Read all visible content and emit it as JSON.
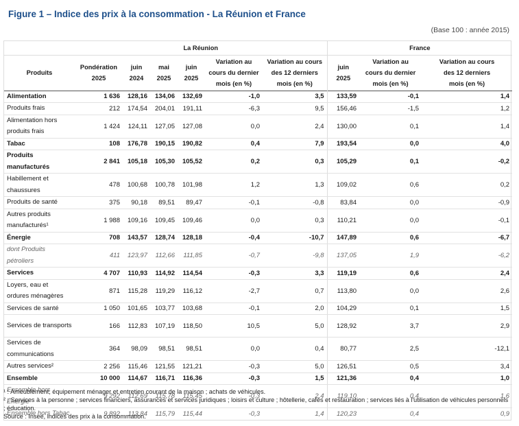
{
  "title": "Figure 1 – Indice des prix à la consommation - La Réunion et France",
  "base_note": "(Base 100 : année 2015)",
  "table": {
    "group_reunion": "La Réunion",
    "group_france": "France",
    "headers": {
      "produits": "Produits",
      "ponderation": [
        "Pondération",
        "2025"
      ],
      "juin2024": [
        "juin",
        "2024"
      ],
      "mai2025": [
        "mai",
        "2025"
      ],
      "juin2025": [
        "juin",
        "2025"
      ],
      "var_mois": [
        "Variation au",
        "cours du dernier",
        "mois (en %)"
      ],
      "var_12": [
        "Variation au cours",
        "des 12 derniers",
        "mois (en %)"
      ],
      "fr_juin2025": [
        "juin",
        "2025"
      ],
      "fr_var_mois": [
        "Variation au",
        "cours du dernier",
        "mois (en %)"
      ],
      "fr_var_12": [
        "Variation au cours",
        "des 12 derniers",
        "mois (en %)"
      ]
    },
    "rows": [
      {
        "style": "b",
        "cells": [
          "Alimentation",
          "1 636",
          "128,16",
          "134,06",
          "132,69",
          "-1,0",
          "3,5",
          "133,59",
          "-0,1",
          "1,4"
        ]
      },
      {
        "style": "",
        "cells": [
          "Produits frais",
          "212",
          "174,54",
          "204,01",
          "191,11",
          "-6,3",
          "9,5",
          "156,46",
          "-1,5",
          "1,2"
        ]
      },
      {
        "style": "tall",
        "cells": [
          "Alimentation hors produits frais",
          "1 424",
          "124,11",
          "127,05",
          "127,08",
          "0,0",
          "2,4",
          "130,00",
          "0,1",
          "1,4"
        ]
      },
      {
        "style": "b",
        "cells": [
          "Tabac",
          "108",
          "176,78",
          "190,15",
          "190,82",
          "0,4",
          "7,9",
          "193,54",
          "0,0",
          "4,0"
        ]
      },
      {
        "style": "b tall",
        "cells": [
          "Produits manufacturés",
          "2 841",
          "105,18",
          "105,30",
          "105,52",
          "0,2",
          "0,3",
          "105,29",
          "0,1",
          "-0,2"
        ]
      },
      {
        "style": "tall",
        "cells": [
          "Habillement et chaussures",
          "478",
          "100,68",
          "100,78",
          "101,98",
          "1,2",
          "1,3",
          "109,02",
          "0,6",
          "0,2"
        ]
      },
      {
        "style": "",
        "cells": [
          "Produits de santé",
          "375",
          "90,18",
          "89,51",
          "89,47",
          "-0,1",
          "-0,8",
          "83,84",
          "0,0",
          "-0,9"
        ]
      },
      {
        "style": "tall",
        "cells": [
          "Autres produits manufacturés¹",
          "1 988",
          "109,16",
          "109,45",
          "109,46",
          "0,0",
          "0,3",
          "110,21",
          "0,0",
          "-0,1"
        ]
      },
      {
        "style": "b",
        "cells": [
          "Énergie",
          "708",
          "143,57",
          "128,74",
          "128,18",
          "-0,4",
          "-10,7",
          "147,89",
          "0,6",
          "-6,7"
        ]
      },
      {
        "style": "it",
        "cells": [
          "dont Produits pétroliers",
          "411",
          "123,97",
          "112,66",
          "111,85",
          "-0,7",
          "-9,8",
          "137,05",
          "1,9",
          "-6,2"
        ]
      },
      {
        "style": "b",
        "cells": [
          "Services",
          "4 707",
          "110,93",
          "114,92",
          "114,54",
          "-0,3",
          "3,3",
          "119,19",
          "0,6",
          "2,4"
        ]
      },
      {
        "style": "tall",
        "cells": [
          "Loyers, eau et ordures ménagères",
          "871",
          "115,28",
          "119,29",
          "116,12",
          "-2,7",
          "0,7",
          "113,80",
          "0,0",
          "2,6"
        ]
      },
      {
        "style": "",
        "cells": [
          "Services de santé",
          "1 050",
          "101,65",
          "103,77",
          "103,68",
          "-0,1",
          "2,0",
          "104,29",
          "0,1",
          "1,5"
        ]
      },
      {
        "style": "tall",
        "cells": [
          "Services de transports",
          "166",
          "112,83",
          "107,19",
          "118,50",
          "10,5",
          "5,0",
          "128,92",
          "3,7",
          "2,9"
        ]
      },
      {
        "style": "tall",
        "cells": [
          "Services de communications",
          "364",
          "98,09",
          "98,51",
          "98,51",
          "0,0",
          "0,4",
          "80,77",
          "2,5",
          "-12,1"
        ]
      },
      {
        "style": "",
        "cells": [
          "Autres services²",
          "2 256",
          "115,46",
          "121,55",
          "121,21",
          "-0,3",
          "5,0",
          "126,51",
          "0,5",
          "3,4"
        ]
      },
      {
        "style": "b",
        "cells": [
          "Ensemble",
          "10 000",
          "114,67",
          "116,71",
          "116,36",
          "-0,3",
          "1,5",
          "121,36",
          "0,4",
          "1,0"
        ]
      },
      {
        "style": "it",
        "cells": [
          "Ensemble hors Énergie",
          "9 292",
          "112,69",
          "115,78",
          "115,45",
          "-0,3",
          "2,4",
          "119,10",
          "0,4",
          "1,6"
        ]
      },
      {
        "style": "it",
        "cells": [
          "Ensemble hors Tabac",
          "9 892",
          "113,84",
          "115,79",
          "115,44",
          "-0,3",
          "1,4",
          "120,23",
          "0,4",
          "0,9"
        ]
      }
    ]
  },
  "notes": {
    "n1": "¹ : Ameublement, équipement ménager et entretien courant de la maison ; achats de véhicules.",
    "n2": "² : Services à la personne ; services financiers, assurances et services juridiques ; loisirs et culture ; hôtellerie, cafés et restauration ; services liés à l'utilisation de véhicules personnels ; éducation.",
    "source": "Source : Insee, indices des prix à la consommation."
  }
}
